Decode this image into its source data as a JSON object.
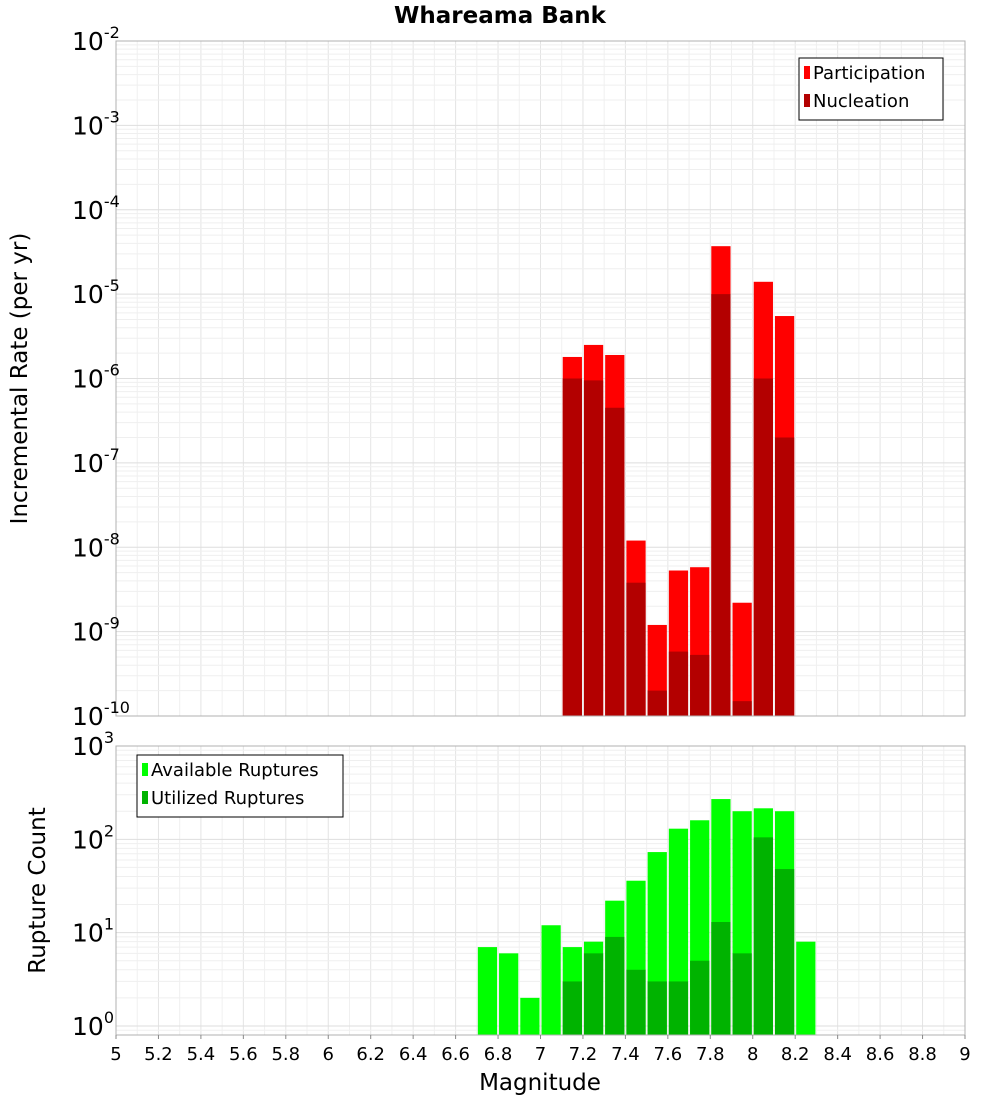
{
  "chart_data": [
    {
      "type": "bar",
      "title": "Whareama Bank",
      "xlabel": "Magnitude",
      "ylabel": "Incremental Rate (per yr)",
      "y_scale": "log",
      "ylim": [
        1e-10,
        0.01
      ],
      "xlim": [
        5,
        9
      ],
      "bar_width": 0.1,
      "grid": true,
      "legend_position": "top-right",
      "y_ticks": [
        {
          "base": "10",
          "exp": "-10"
        },
        {
          "base": "10",
          "exp": "-9"
        },
        {
          "base": "10",
          "exp": "-8"
        },
        {
          "base": "10",
          "exp": "-7"
        },
        {
          "base": "10",
          "exp": "-6"
        },
        {
          "base": "10",
          "exp": "-5"
        },
        {
          "base": "10",
          "exp": "-4"
        },
        {
          "base": "10",
          "exp": "-3"
        },
        {
          "base": "10",
          "exp": "-2"
        }
      ],
      "series": [
        {
          "name": "Participation",
          "color": "#ff0000",
          "x": [
            7.15,
            7.25,
            7.35,
            7.45,
            7.55,
            7.65,
            7.75,
            7.85,
            7.95,
            8.05,
            8.15
          ],
          "values": [
            1.8e-06,
            2.5e-06,
            1.9e-06,
            1.2e-08,
            1.2e-09,
            5.3e-09,
            5.8e-09,
            3.7e-05,
            2.2e-09,
            1.4e-05,
            5.5e-06
          ]
        },
        {
          "name": "Nucleation",
          "color": "#b30000",
          "x": [
            7.15,
            7.25,
            7.35,
            7.45,
            7.55,
            7.65,
            7.75,
            7.85,
            7.95,
            8.05,
            8.15
          ],
          "values": [
            1e-06,
            9.5e-07,
            4.5e-07,
            3.8e-09,
            2e-10,
            5.8e-10,
            5.3e-10,
            1e-05,
            1.5e-10,
            1e-06,
            2e-07
          ]
        }
      ]
    },
    {
      "type": "bar",
      "xlabel": "Magnitude",
      "ylabel": "Rupture Count",
      "y_scale": "log",
      "ylim": [
        0.8,
        1000
      ],
      "xlim": [
        5,
        9
      ],
      "bar_width": 0.1,
      "grid": true,
      "legend_position": "top-left",
      "y_ticks": [
        {
          "value": 1,
          "base": "10",
          "exp": "0"
        },
        {
          "value": 10,
          "base": "10",
          "exp": "1"
        },
        {
          "value": 100,
          "base": "10",
          "exp": "2"
        },
        {
          "value": 1000,
          "base": "10",
          "exp": "3"
        }
      ],
      "x_ticks": [
        "5",
        "5.2",
        "5.4",
        "5.6",
        "5.8",
        "6",
        "6.2",
        "6.4",
        "6.6",
        "6.8",
        "7",
        "7.2",
        "7.4",
        "7.6",
        "7.8",
        "8",
        "8.2",
        "8.4",
        "8.6",
        "8.8",
        "9"
      ],
      "series": [
        {
          "name": "Available Ruptures",
          "color": "#00ff00",
          "x": [
            6.75,
            6.85,
            6.95,
            7.05,
            7.15,
            7.25,
            7.35,
            7.45,
            7.55,
            7.65,
            7.75,
            7.85,
            7.95,
            8.05,
            8.15,
            8.25
          ],
          "values": [
            7,
            6,
            2,
            12,
            7,
            8,
            22,
            36,
            73,
            130,
            160,
            270,
            200,
            215,
            200,
            8
          ]
        },
        {
          "name": "Utilized Ruptures",
          "color": "#00b300",
          "x": [
            7.15,
            7.25,
            7.35,
            7.45,
            7.55,
            7.65,
            7.75,
            7.85,
            7.95,
            8.05,
            8.15
          ],
          "values": [
            3,
            6,
            9,
            4,
            3,
            3,
            5,
            13,
            6,
            105,
            48
          ]
        }
      ]
    }
  ]
}
